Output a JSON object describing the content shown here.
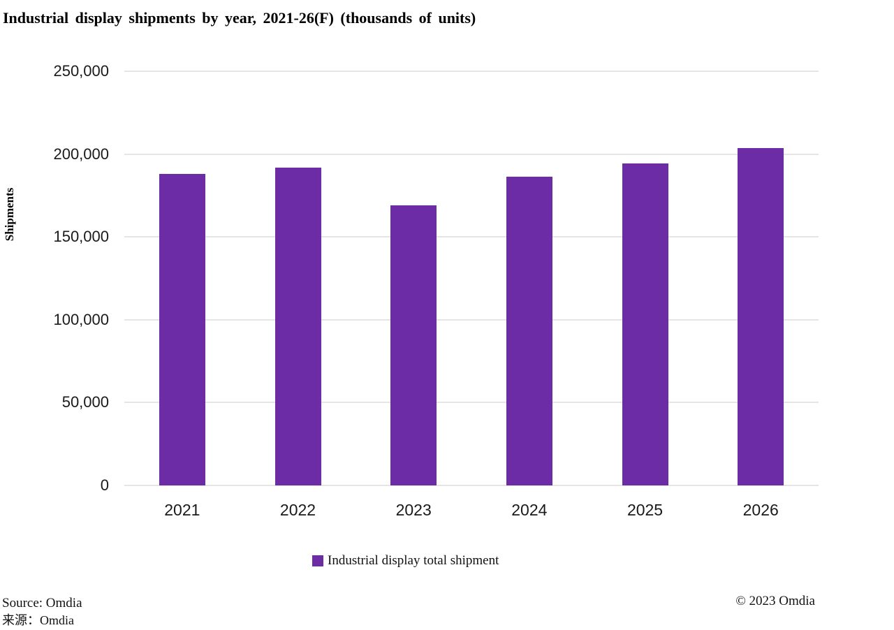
{
  "title": "Industrial display shipments by year, 2021-26(F) (thousands of units)",
  "chart_data": {
    "type": "bar",
    "title": "Industrial display shipments by year, 2021-26(F) (thousands of units)",
    "categories": [
      "2021",
      "2022",
      "2023",
      "2024",
      "2025",
      "2026"
    ],
    "series": [
      {
        "name": "Industrial display total shipment",
        "values": [
          188000,
          192000,
          169000,
          186500,
          194500,
          203500
        ]
      }
    ],
    "xlabel": "",
    "ylabel": "Shipments",
    "ylim": [
      0,
      250000
    ],
    "yticks": [
      0,
      50000,
      100000,
      150000,
      200000,
      250000
    ],
    "ytick_labels": [
      "0",
      "50,000",
      "100,000",
      "150,000",
      "200,000",
      "250,000"
    ],
    "grid": true,
    "legend_position": "bottom",
    "bar_color": "#6B2CA5",
    "gridline_color": "#e5e5e5"
  },
  "legend": {
    "label": "Industrial display total shipment",
    "marker_color": "#6B2CA5"
  },
  "footer": {
    "source_en": "Source: Omdia",
    "source_zh": "来源：Omdia",
    "copyright": "© 2023 Omdia"
  }
}
